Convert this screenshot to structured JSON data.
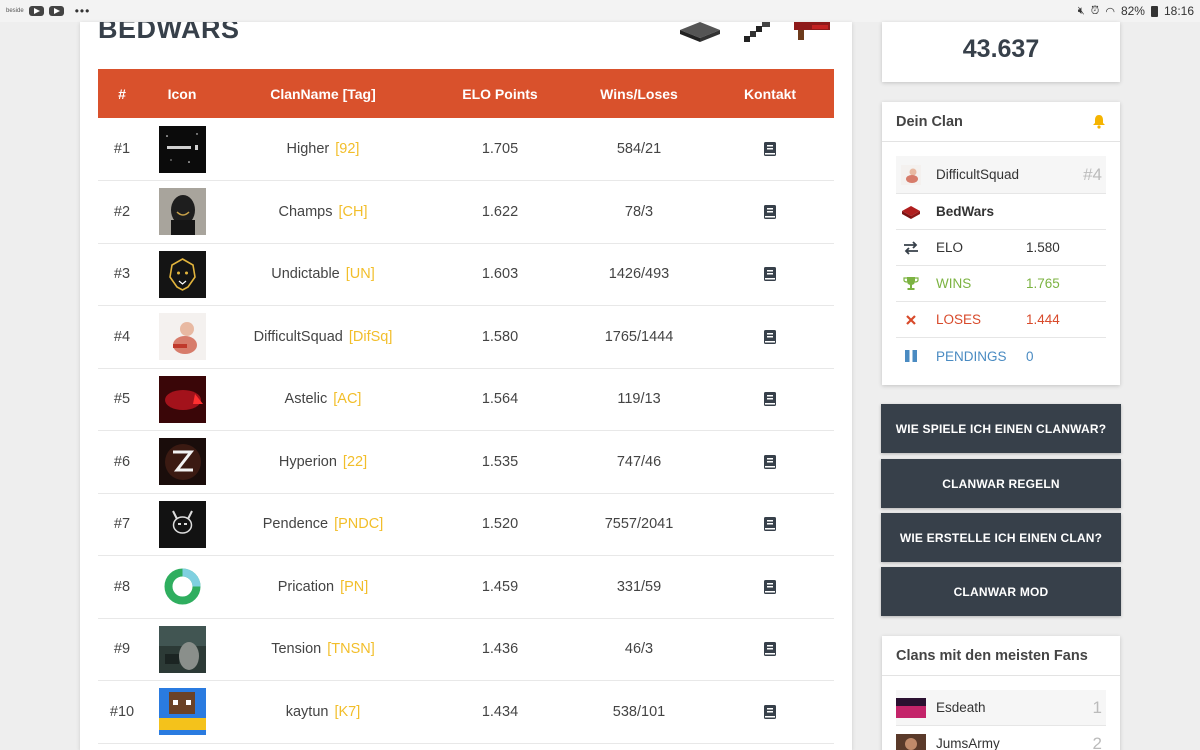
{
  "status_bar": {
    "left_label": "beside",
    "dots": "•••",
    "battery": "82%",
    "time": "18:16"
  },
  "main": {
    "title": "BEDWARS",
    "columns": [
      "#",
      "Icon",
      "ClanName [Tag]",
      "ELO Points",
      "Wins/Loses",
      "Kontakt"
    ],
    "rows": [
      {
        "rank": "#1",
        "name": "Higher",
        "tag": "[92]",
        "elo": "1.705",
        "wl": "584/21",
        "icon": "higher-clan-icon"
      },
      {
        "rank": "#2",
        "name": "Champs",
        "tag": "[CH]",
        "elo": "1.622",
        "wl": "78/3",
        "icon": "champs-clan-icon"
      },
      {
        "rank": "#3",
        "name": "Undictable",
        "tag": "[UN]",
        "elo": "1.603",
        "wl": "1426/493",
        "icon": "lion-icon"
      },
      {
        "rank": "#4",
        "name": "DifficultSquad",
        "tag": "[DifSq]",
        "elo": "1.580",
        "wl": "1765/1444",
        "icon": "difficultsquad-clan-icon"
      },
      {
        "rank": "#5",
        "name": "Astelic",
        "tag": "[AC]",
        "elo": "1.564",
        "wl": "119/13",
        "icon": "astelic-clan-icon"
      },
      {
        "rank": "#6",
        "name": "Hyperion",
        "tag": "[22]",
        "elo": "1.535",
        "wl": "747/46",
        "icon": "hyperion-clan-icon"
      },
      {
        "rank": "#7",
        "name": "Pendence",
        "tag": "[PNDC]",
        "elo": "1.520",
        "wl": "7557/2041",
        "icon": "pendence-clan-icon"
      },
      {
        "rank": "#8",
        "name": "Prication",
        "tag": "[PN]",
        "elo": "1.459",
        "wl": "331/59",
        "icon": "prication-clan-icon"
      },
      {
        "rank": "#9",
        "name": "Tension",
        "tag": "[TNSN]",
        "elo": "1.436",
        "wl": "46/3",
        "icon": "tension-clan-icon"
      },
      {
        "rank": "#10",
        "name": "kaytun",
        "tag": "[K7]",
        "elo": "1.434",
        "wl": "538/101",
        "icon": "kaytun-clan-icon"
      }
    ]
  },
  "sidebar": {
    "elo_total": "43.637",
    "my_clan": {
      "title": "Dein Clan",
      "clan_name": "DifficultSquad",
      "clan_rank": "#4",
      "mode": "BedWars",
      "stats": [
        {
          "label": "ELO",
          "value": "1.580",
          "icon": "swap-arrows-icon",
          "color": ""
        },
        {
          "label": "WINS",
          "value": "1.765",
          "icon": "trophy-icon",
          "color": "green"
        },
        {
          "label": "LOSES",
          "value": "1.444",
          "icon": "close-x-icon",
          "color": "red"
        },
        {
          "label": "PENDINGS",
          "value": "0",
          "icon": "pause-icon",
          "color": "blue"
        }
      ]
    },
    "buttons": [
      "WIE SPIELE ICH EINEN CLANWAR?",
      "CLANWAR REGELN",
      "WIE ERSTELLE ICH EINEN CLAN?",
      "CLANWAR MOD"
    ],
    "fans": {
      "title": "Clans mit den meisten Fans",
      "items": [
        {
          "name": "Esdeath",
          "count": "1"
        },
        {
          "name": "JumsArmy",
          "count": "2"
        }
      ]
    }
  },
  "colors": {
    "accent": "#d9512c",
    "tag": "#f2be2a",
    "dark": "#37404a",
    "green": "#7cb342",
    "red": "#d84a2b",
    "blue": "#4a8bc2"
  }
}
